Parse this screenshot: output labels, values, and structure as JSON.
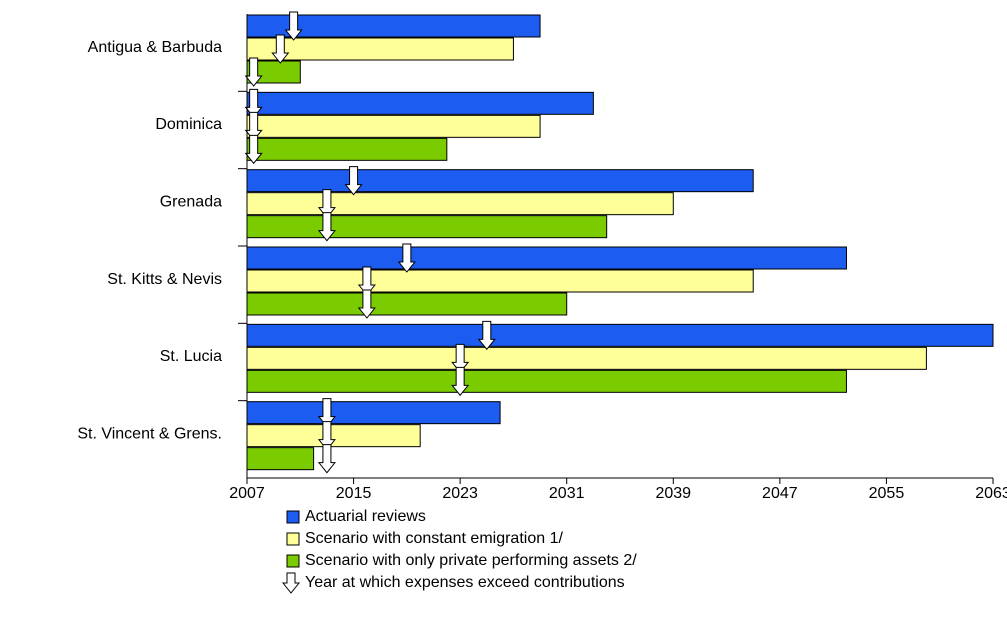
{
  "chart_data": {
    "type": "bar",
    "orientation": "horizontal",
    "categories": [
      "Antigua & Barbuda",
      "Dominica",
      "Grenada",
      "St. Kitts & Nevis",
      "St. Lucia",
      "St. Vincent & Grens."
    ],
    "series": [
      {
        "name": "Actuarial reviews",
        "color": "#1c5cf0",
        "values": [
          2029,
          2033,
          2045,
          2052,
          2063,
          2026
        ],
        "arrows": [
          2010.5,
          2007.5,
          2015,
          2019,
          2025,
          2013
        ]
      },
      {
        "name": "Scenario with constant emigration 1/",
        "color": "#ffff99",
        "values": [
          2027,
          2029,
          2039,
          2045,
          2058,
          2020
        ],
        "arrows": [
          2009.5,
          2007.5,
          2013,
          2016,
          2023,
          2013
        ]
      },
      {
        "name": "Scenario with only private performing assets 2/",
        "color": "#7acc00",
        "values": [
          2011,
          2022,
          2034,
          2031,
          2052,
          2012
        ],
        "arrows": [
          2007.5,
          2007.5,
          2013,
          2016,
          2023,
          2013
        ]
      }
    ],
    "arrow_label": "Year at which expenses exceed contributions",
    "xlim": [
      2007,
      2063
    ],
    "xticks": [
      2007,
      2015,
      2023,
      2031,
      2039,
      2047,
      2055,
      2063
    ],
    "grid": false
  }
}
